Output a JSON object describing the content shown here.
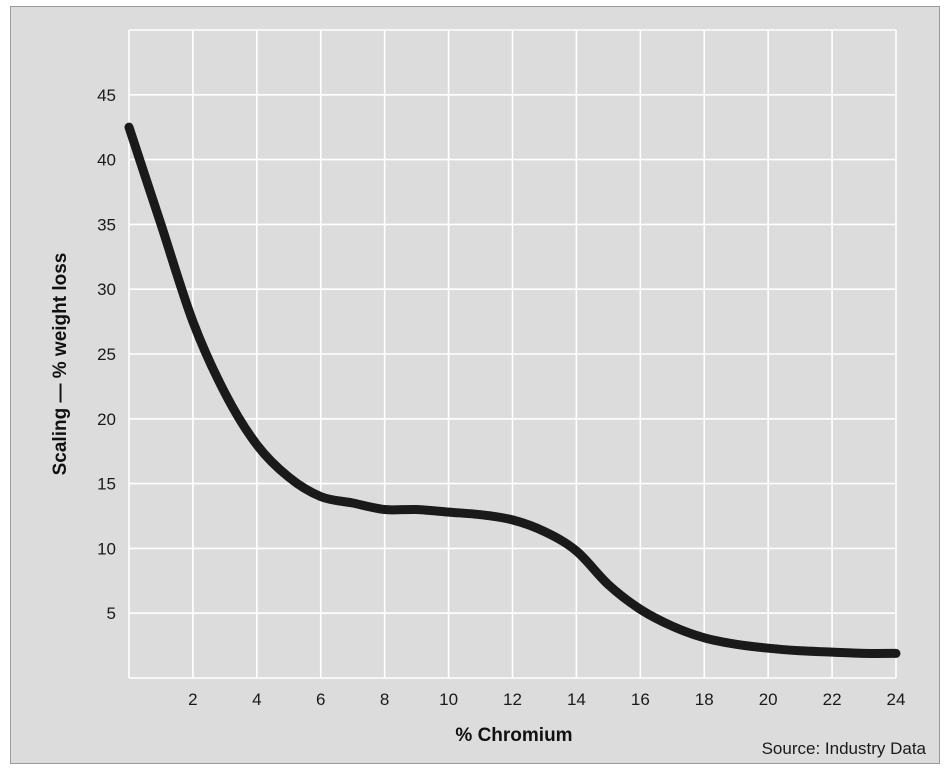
{
  "chart_data": {
    "type": "line",
    "xlabel": "% Chromium",
    "ylabel": "Scaling — % weight loss",
    "xlim": [
      0,
      24
    ],
    "ylim": [
      0,
      50
    ],
    "x_ticks": [
      2,
      4,
      6,
      8,
      10,
      12,
      14,
      16,
      18,
      20,
      22,
      24
    ],
    "y_ticks": [
      5,
      10,
      15,
      20,
      25,
      30,
      35,
      40,
      45
    ],
    "grid": true,
    "series": [
      {
        "x": [
          0,
          1,
          2,
          3,
          4,
          5,
          6,
          7,
          8,
          9,
          10,
          11,
          12,
          13,
          14,
          15,
          16,
          17,
          18,
          19,
          20,
          21,
          22,
          23,
          24
        ],
        "y": [
          42.5,
          35,
          27.5,
          22,
          18,
          15.5,
          14,
          13.5,
          13,
          13,
          12.8,
          12.6,
          12.2,
          11.3,
          9.8,
          7.2,
          5.3,
          4,
          3.1,
          2.6,
          2.3,
          2.1,
          2,
          1.9,
          1.9
        ]
      }
    ],
    "source": "Source: Industry Data",
    "line_color": "#1a1a1a",
    "grid_color": "#ffffff",
    "background_color": "#dcdcdc"
  }
}
